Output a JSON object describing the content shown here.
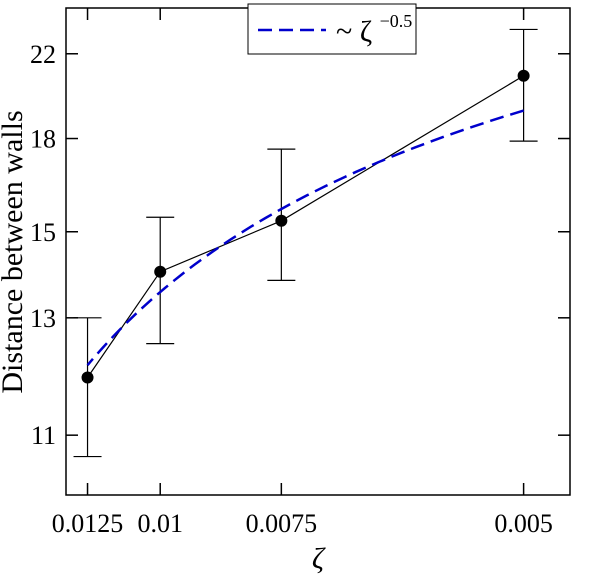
{
  "chart_data": {
    "type": "line",
    "title": "",
    "xlabel": "ζ",
    "ylabel": "Distance between walls",
    "x_scale": "reciprocal",
    "y_scale": "reciprocal",
    "x_ticks": [
      0.005,
      0.0075,
      0.01,
      0.0125
    ],
    "x_tick_labels": [
      "0.005",
      "0.0075",
      "0.01",
      "0.0125"
    ],
    "y_ticks": [
      11,
      13,
      15,
      18,
      22
    ],
    "y_tick_labels": [
      "11",
      "13",
      "15",
      "18",
      "22"
    ],
    "xlim": [
      0.0047,
      0.0135
    ],
    "ylim": [
      10.2,
      25
    ],
    "grid": false,
    "legend_position": "top-center",
    "series": [
      {
        "kind": "data",
        "color": "#000000",
        "x": [
          0.005,
          0.0075,
          0.01,
          0.0125
        ],
        "y": [
          20.8,
          15.3,
          14.0,
          11.9
        ],
        "err_low": [
          17.9,
          13.8,
          12.5,
          10.7
        ],
        "err_high": [
          23.5,
          17.6,
          15.4,
          13.0
        ]
      },
      {
        "kind": "fit",
        "name": "~ ζ",
        "name_exponent": "−0.5",
        "color": "#0000cc",
        "dash": true,
        "x": [
          0.005,
          0.0125
        ],
        "y": [
          19.15,
          12.7
        ]
      }
    ]
  }
}
